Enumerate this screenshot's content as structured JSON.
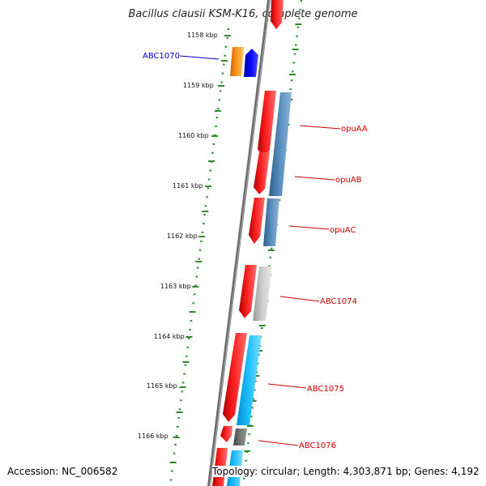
{
  "title": "Bacillus clausii KSM-K16, complete genome",
  "accession": "Accession: NC_006582",
  "summary": "Topology: circular; Length: 4,303,871 bp; Genes: 4,192",
  "ticks": [
    "1158 kbp",
    "1159 kbp",
    "1160 kbp",
    "1161 kbp",
    "1162 kbp",
    "1163 kbp",
    "1164 kbp",
    "1165 kbp",
    "1166 kbp"
  ],
  "genes": [
    {
      "name": "ABC1070",
      "color": "#0000cc"
    },
    {
      "name": "opuAA",
      "color": "#cc0000"
    },
    {
      "name": "opuAB",
      "color": "#cc0000"
    },
    {
      "name": "opuAC",
      "color": "#cc0000"
    },
    {
      "name": "ABC1074",
      "color": "#cc0000"
    },
    {
      "name": "ABC1075",
      "color": "#cc0000"
    },
    {
      "name": "ABC1076",
      "color": "#cc0000"
    }
  ],
  "colors": {
    "tick_green": "#2e8b2e",
    "backbone": "#777777",
    "cds_red": "#ff0000",
    "feature_blue": "#4682b4",
    "feature_orange": "#ff8c00",
    "feature_navy": "#0000ff",
    "feature_grey": "#bbbbbb",
    "feature_cyan": "#00bfff",
    "feature_dark": "#666666"
  }
}
